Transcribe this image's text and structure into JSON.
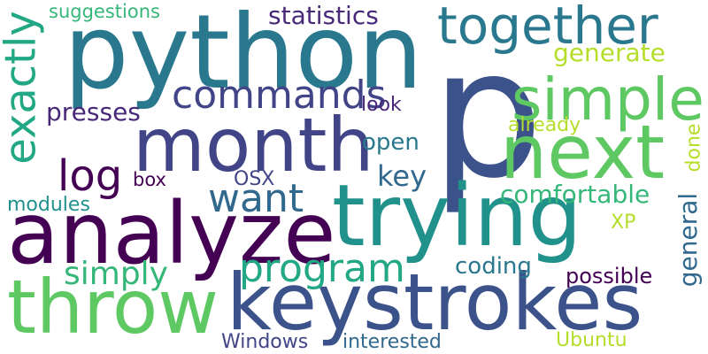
{
  "background": "#ffffff",
  "words": [
    {
      "text": "p",
      "color": "#3b528b"
    },
    {
      "text": "python",
      "color": "#2a788e"
    },
    {
      "text": "month",
      "color": "#414487"
    },
    {
      "text": "next",
      "color": "#5ec962"
    },
    {
      "text": "analyze",
      "color": "#440154"
    },
    {
      "text": "trying",
      "color": "#21918c"
    },
    {
      "text": "keystrokes",
      "color": "#3b528b"
    },
    {
      "text": "throw",
      "color": "#5ec962"
    },
    {
      "text": "together",
      "color": "#2a788e"
    },
    {
      "text": "simple",
      "color": "#5ec962"
    },
    {
      "text": "commands",
      "color": "#414487"
    },
    {
      "text": "exactly",
      "color": "#22a884"
    },
    {
      "text": "program",
      "color": "#22a884"
    },
    {
      "text": "want",
      "color": "#31688e"
    },
    {
      "text": "log",
      "color": "#440154"
    },
    {
      "text": "statistics",
      "color": "#482878"
    },
    {
      "text": "suggestions",
      "color": "#35b779"
    },
    {
      "text": "generate",
      "color": "#b5de2b"
    },
    {
      "text": "presses",
      "color": "#482878"
    },
    {
      "text": "look",
      "color": "#482878"
    },
    {
      "text": "already",
      "color": "#b5de2b"
    },
    {
      "text": "done",
      "color": "#b5de2b"
    },
    {
      "text": "open",
      "color": "#2a788e"
    },
    {
      "text": "key",
      "color": "#31688e"
    },
    {
      "text": "box",
      "color": "#440154"
    },
    {
      "text": "OSX",
      "color": "#414487"
    },
    {
      "text": "comfortable",
      "color": "#35b779"
    },
    {
      "text": "general",
      "color": "#31688e"
    },
    {
      "text": "modules",
      "color": "#21918c"
    },
    {
      "text": "XP",
      "color": "#b5de2b"
    },
    {
      "text": "simply",
      "color": "#35b779"
    },
    {
      "text": "coding",
      "color": "#2a788e"
    },
    {
      "text": "possible",
      "color": "#440154"
    },
    {
      "text": "Windows",
      "color": "#414487"
    },
    {
      "text": "interested",
      "color": "#31688e"
    },
    {
      "text": "Ubuntu",
      "color": "#b5de2b"
    }
  ]
}
